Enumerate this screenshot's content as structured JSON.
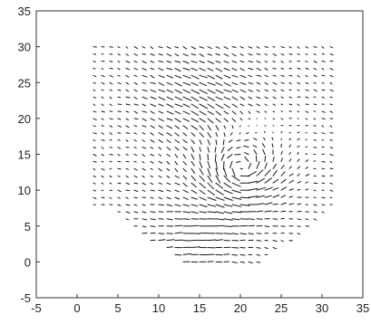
{
  "chart_data": {
    "type": "quiver",
    "title": "",
    "xlabel": "",
    "ylabel": "",
    "xlim": [
      -5,
      35
    ],
    "ylim": [
      -5,
      35
    ],
    "grid": false,
    "x_ticks": [
      "-5",
      "0",
      "5",
      "10",
      "15",
      "20",
      "25",
      "30",
      "35"
    ],
    "y_ticks": [
      "-5",
      "0",
      "5",
      "10",
      "15",
      "20",
      "25",
      "30",
      "35"
    ],
    "field_extent": {
      "x": [
        2,
        31
      ],
      "y": [
        0,
        30
      ]
    },
    "vector_spacing": 1,
    "features": [
      {
        "kind": "vortex",
        "center": [
          20,
          13
        ],
        "direction": "counterclockwise",
        "strength": 1.6
      },
      {
        "kind": "shear",
        "center": [
          15,
          23
        ],
        "direction": [
          1,
          -0.5
        ],
        "strength": 0.9
      },
      {
        "kind": "inflow",
        "center": [
          14,
          3
        ],
        "direction": [
          1,
          0.3
        ],
        "strength": 0.8
      }
    ]
  }
}
